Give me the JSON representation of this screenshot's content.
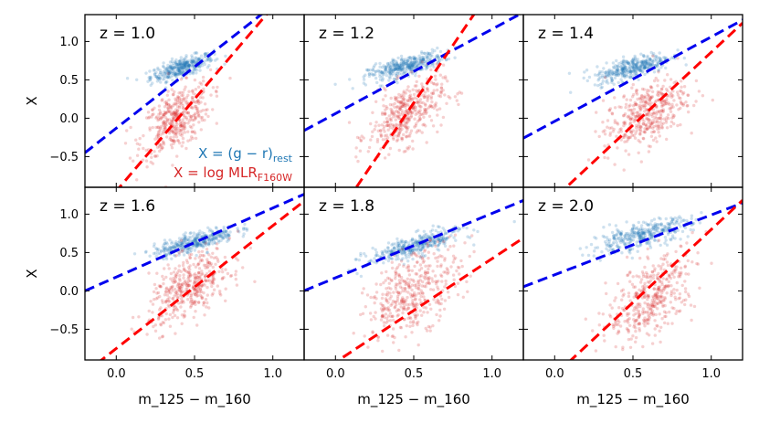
{
  "chart_data": {
    "type": "scatter",
    "layout": "2x3 grid, shared axes",
    "xlabel": "m_125 − m_160",
    "ylabel": "X",
    "xlim": [
      -0.2,
      1.2
    ],
    "ylim": [
      -0.9,
      1.35
    ],
    "xticks": [
      "0.0",
      "0.5",
      "1.0"
    ],
    "xtick_values": [
      0.0,
      0.5,
      1.0
    ],
    "yticks": [
      "−0.5",
      "0.0",
      "0.5",
      "1.0"
    ],
    "ytick_values": [
      -0.5,
      0.0,
      0.5,
      1.0
    ],
    "colors": {
      "color_points": "#1f77b4",
      "mlr_points": "#d62728",
      "color_fit": "#0000ee",
      "mlr_fit": "#ff0000"
    },
    "legend": {
      "placement": "lower-right of first panel",
      "color_series": {
        "prefix": "X = (g − r)",
        "subscript": "rest"
      },
      "mlr_series": {
        "prefix": "X = log MLR",
        "subscript": "F160W"
      }
    },
    "panels": [
      {
        "z_label": "z = 1.0",
        "color_fit": {
          "slope": 1.6,
          "intercept": -0.13
        },
        "mlr_fit": {
          "slope": 2.4,
          "intercept": -0.95
        },
        "color_cloud": {
          "center": [
            0.42,
            0.66
          ],
          "spread": [
            0.1,
            0.06
          ],
          "slope": 0.6
        },
        "mlr_cloud": {
          "center": [
            0.38,
            -0.02
          ],
          "spread": [
            0.11,
            0.2
          ],
          "slope": 1.1
        }
      },
      {
        "z_label": "z = 1.2",
        "color_fit": {
          "slope": 1.1,
          "intercept": 0.06
        },
        "mlr_fit": {
          "slope": 3.0,
          "intercept": -1.3
        },
        "color_cloud": {
          "center": [
            0.45,
            0.68
          ],
          "spread": [
            0.12,
            0.06
          ],
          "slope": 0.55
        },
        "mlr_cloud": {
          "center": [
            0.45,
            0.05
          ],
          "spread": [
            0.12,
            0.2
          ],
          "slope": 1.0
        }
      },
      {
        "z_label": "z = 1.4",
        "color_fit": {
          "slope": 1.1,
          "intercept": -0.04
        },
        "mlr_fit": {
          "slope": 1.9,
          "intercept": -1.04
        },
        "color_cloud": {
          "center": [
            0.5,
            0.66
          ],
          "spread": [
            0.12,
            0.07
          ],
          "slope": 0.55
        },
        "mlr_cloud": {
          "center": [
            0.58,
            0.05
          ],
          "spread": [
            0.13,
            0.2
          ],
          "slope": 0.9
        }
      },
      {
        "z_label": "z = 1.6",
        "color_fit": {
          "slope": 0.9,
          "intercept": 0.18
        },
        "mlr_fit": {
          "slope": 1.6,
          "intercept": -0.75
        },
        "color_cloud": {
          "center": [
            0.5,
            0.64
          ],
          "spread": [
            0.13,
            0.06
          ],
          "slope": 0.55
        },
        "mlr_cloud": {
          "center": [
            0.47,
            0.05
          ],
          "spread": [
            0.13,
            0.2
          ],
          "slope": 1.0
        }
      },
      {
        "z_label": "z = 1.8",
        "color_fit": {
          "slope": 0.84,
          "intercept": 0.17
        },
        "mlr_fit": {
          "slope": 1.35,
          "intercept": -0.93
        },
        "color_cloud": {
          "center": [
            0.5,
            0.58
          ],
          "spread": [
            0.15,
            0.07
          ],
          "slope": 0.6
        },
        "mlr_cloud": {
          "center": [
            0.5,
            0.0
          ],
          "spread": [
            0.15,
            0.25
          ],
          "slope": 1.0
        }
      },
      {
        "z_label": "z = 2.0",
        "color_fit": {
          "slope": 0.78,
          "intercept": 0.21
        },
        "mlr_fit": {
          "slope": 1.9,
          "intercept": -1.1
        },
        "color_cloud": {
          "center": [
            0.55,
            0.72
          ],
          "spread": [
            0.16,
            0.08
          ],
          "slope": 0.5
        },
        "mlr_cloud": {
          "center": [
            0.62,
            -0.08
          ],
          "spread": [
            0.14,
            0.25
          ],
          "slope": 1.2
        }
      }
    ]
  }
}
